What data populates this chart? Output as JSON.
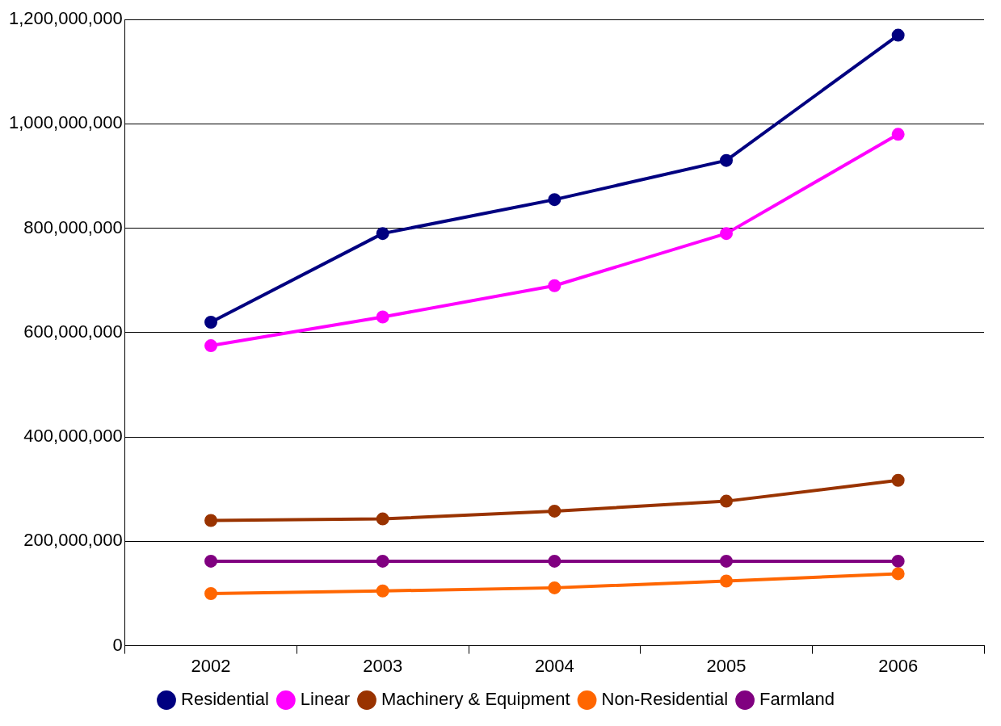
{
  "chart_data": {
    "type": "line",
    "categories": [
      "2002",
      "2003",
      "2004",
      "2005",
      "2006"
    ],
    "series": [
      {
        "name": "Residential",
        "color": "#000080",
        "values": [
          620000000,
          790000000,
          855000000,
          930000000,
          1170000000
        ]
      },
      {
        "name": "Linear",
        "color": "#ff00ff",
        "values": [
          575000000,
          630000000,
          690000000,
          790000000,
          980000000
        ]
      },
      {
        "name": "Machinery & Equipment",
        "color": "#993300",
        "values": [
          240000000,
          243000000,
          258000000,
          277000000,
          317000000
        ]
      },
      {
        "name": "Non-Residential",
        "color": "#ff6600",
        "values": [
          100000000,
          105000000,
          111000000,
          124000000,
          138000000
        ]
      },
      {
        "name": "Farmland",
        "color": "#800080",
        "values": [
          162000000,
          162000000,
          162000000,
          162000000,
          162000000
        ]
      }
    ],
    "ylim": [
      0,
      1200000000
    ],
    "yticks": [
      0,
      {
        "value": 200000000,
        "label": "200,000,000"
      },
      {
        "value": 400000000,
        "label": "400,000,000"
      },
      {
        "value": 600000000,
        "label": "600,000,000"
      },
      {
        "value": 800000000,
        "label": "800,000,000"
      },
      {
        "value": 1000000000,
        "label": "1,000,000,000"
      },
      {
        "value": 1200000000,
        "label": "1,200,000,000"
      }
    ],
    "grid": "y",
    "legend": "bottom",
    "marker": "circle",
    "line_style": "solid"
  }
}
